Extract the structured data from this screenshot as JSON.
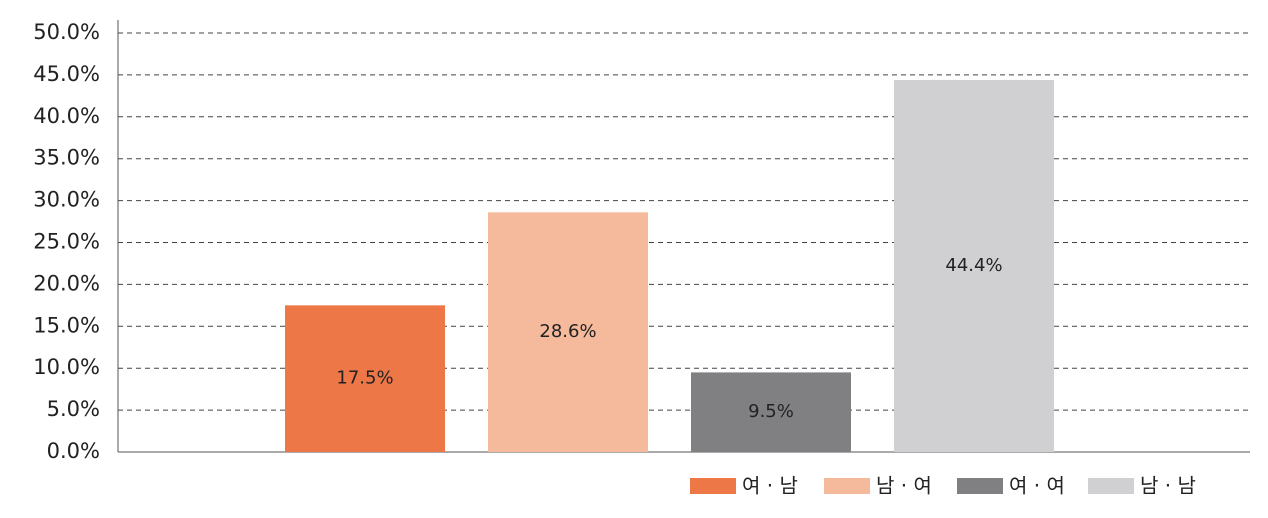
{
  "chart_data": {
    "type": "bar",
    "categories": [
      null
    ],
    "series": [
      {
        "name": "여 · 남",
        "color": "#ee7748",
        "values": [
          17.5
        ],
        "value_labels": [
          "17.5%"
        ]
      },
      {
        "name": "남 · 여",
        "color": "#f5b99c",
        "values": [
          28.6
        ],
        "value_labels": [
          "28.6%"
        ]
      },
      {
        "name": "여 · 여",
        "color": "#808083",
        "values": [
          9.5
        ],
        "value_labels": [
          "9.5%"
        ]
      },
      {
        "name": "남 · 남",
        "color": "#d0d0d2",
        "values": [
          44.4
        ],
        "value_labels": [
          "44.4%"
        ]
      }
    ],
    "ylim": [
      0,
      50
    ],
    "yticks": [
      {
        "value": 0,
        "label": "0.0%"
      },
      {
        "value": 5,
        "label": "5.0%"
      },
      {
        "value": 10,
        "label": "10.0%"
      },
      {
        "value": 15,
        "label": "15.0%"
      },
      {
        "value": 20,
        "label": "20.0%"
      },
      {
        "value": 25,
        "label": "25.0%"
      },
      {
        "value": 30,
        "label": "30.0%"
      },
      {
        "value": 35,
        "label": "35.0%"
      },
      {
        "value": 40,
        "label": "40.0%"
      },
      {
        "value": 45,
        "label": "45.0%"
      },
      {
        "value": 50,
        "label": "50.0%"
      }
    ],
    "grid": true,
    "legend": "bottom-right"
  }
}
